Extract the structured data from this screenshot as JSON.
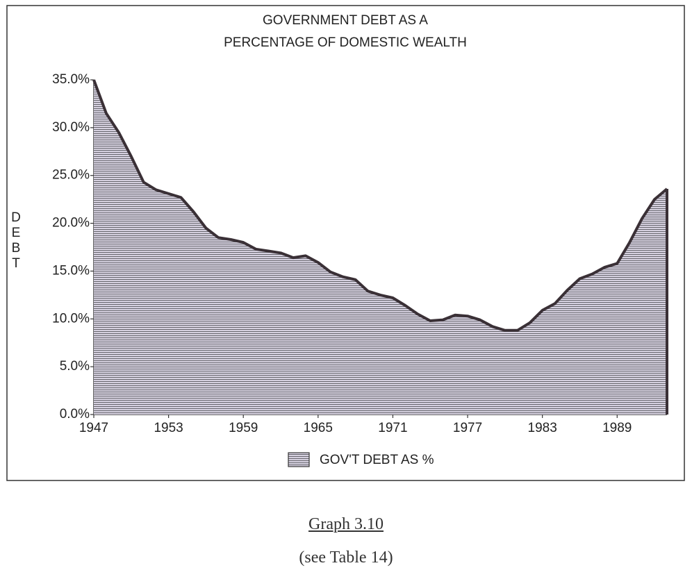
{
  "chart_data": {
    "type": "area",
    "title": [
      "GOVERNMENT DEBT AS A",
      "PERCENTAGE OF DOMESTIC WEALTH"
    ],
    "y_label": "DEBT",
    "x": [
      1947,
      1948,
      1949,
      1950,
      1951,
      1952,
      1953,
      1954,
      1955,
      1956,
      1957,
      1958,
      1959,
      1960,
      1961,
      1962,
      1963,
      1964,
      1965,
      1966,
      1967,
      1968,
      1969,
      1970,
      1971,
      1972,
      1973,
      1974,
      1975,
      1976,
      1977,
      1978,
      1979,
      1980,
      1981,
      1982,
      1983,
      1984,
      1985,
      1986,
      1987,
      1988,
      1989,
      1990,
      1991,
      1992,
      1993
    ],
    "series": [
      {
        "name": "GOV'T DEBT AS %",
        "color": "#c9c3d6",
        "values": [
          35,
          31.5,
          29.5,
          27,
          24.3,
          23.5,
          23.1,
          22.7,
          21.2,
          19.5,
          18.5,
          18.3,
          18,
          17.3,
          17.1,
          16.9,
          16.4,
          16.6,
          15.9,
          14.9,
          14.4,
          14.1,
          12.9,
          12.5,
          12.2,
          11.4,
          10.5,
          9.8,
          9.9,
          10.4,
          10.3,
          9.9,
          9.2,
          8.8,
          8.8,
          9.6,
          10.9,
          11.6,
          13,
          14.2,
          14.7,
          15.4,
          15.8,
          18,
          20.5,
          22.5,
          23.6
        ]
      }
    ],
    "xlim": [
      1947,
      1993
    ],
    "xticks": [
      1947,
      1953,
      1959,
      1965,
      1971,
      1977,
      1983,
      1989
    ],
    "ylim": [
      0,
      35
    ],
    "yticks": [
      {
        "value": 0,
        "label": "0.0%"
      },
      {
        "value": 5,
        "label": "5.0%"
      },
      {
        "value": 10,
        "label": "10.0%"
      },
      {
        "value": 15,
        "label": "15.0%"
      },
      {
        "value": 20,
        "label": "20.0%"
      },
      {
        "value": 25,
        "label": "25.0%"
      },
      {
        "value": 30,
        "label": "30.0%"
      },
      {
        "value": 35,
        "label": "35.0%"
      }
    ],
    "legend": "bottom"
  },
  "caption": {
    "label": "Graph 3.10",
    "note": "(see Table 14)"
  }
}
